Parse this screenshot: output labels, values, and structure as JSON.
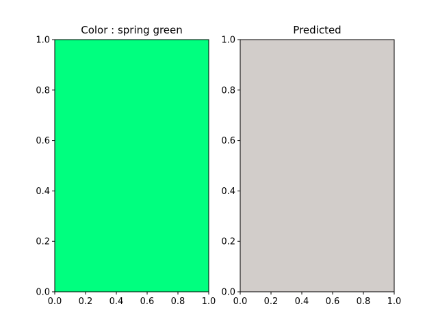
{
  "chart_data": [
    {
      "type": "heatmap",
      "title": "Color : spring green",
      "fill_color": "#00ff7f",
      "xlabel": "",
      "ylabel": "",
      "xlim": [
        0,
        1
      ],
      "ylim": [
        0,
        1
      ],
      "xticks": [
        "0.0",
        "0.2",
        "0.4",
        "0.6",
        "0.8",
        "1.0"
      ],
      "yticks": [
        "0.0",
        "0.2",
        "0.4",
        "0.6",
        "0.8",
        "1.0"
      ],
      "grid": false
    },
    {
      "type": "heatmap",
      "title": "Predicted",
      "fill_color": "#d2cdca",
      "xlabel": "",
      "ylabel": "",
      "xlim": [
        0,
        1
      ],
      "ylim": [
        0,
        1
      ],
      "xticks": [
        "0.0",
        "0.2",
        "0.4",
        "0.6",
        "0.8",
        "1.0"
      ],
      "yticks": [
        "0.0",
        "0.2",
        "0.4",
        "0.6",
        "0.8",
        "1.0"
      ],
      "grid": false
    }
  ]
}
